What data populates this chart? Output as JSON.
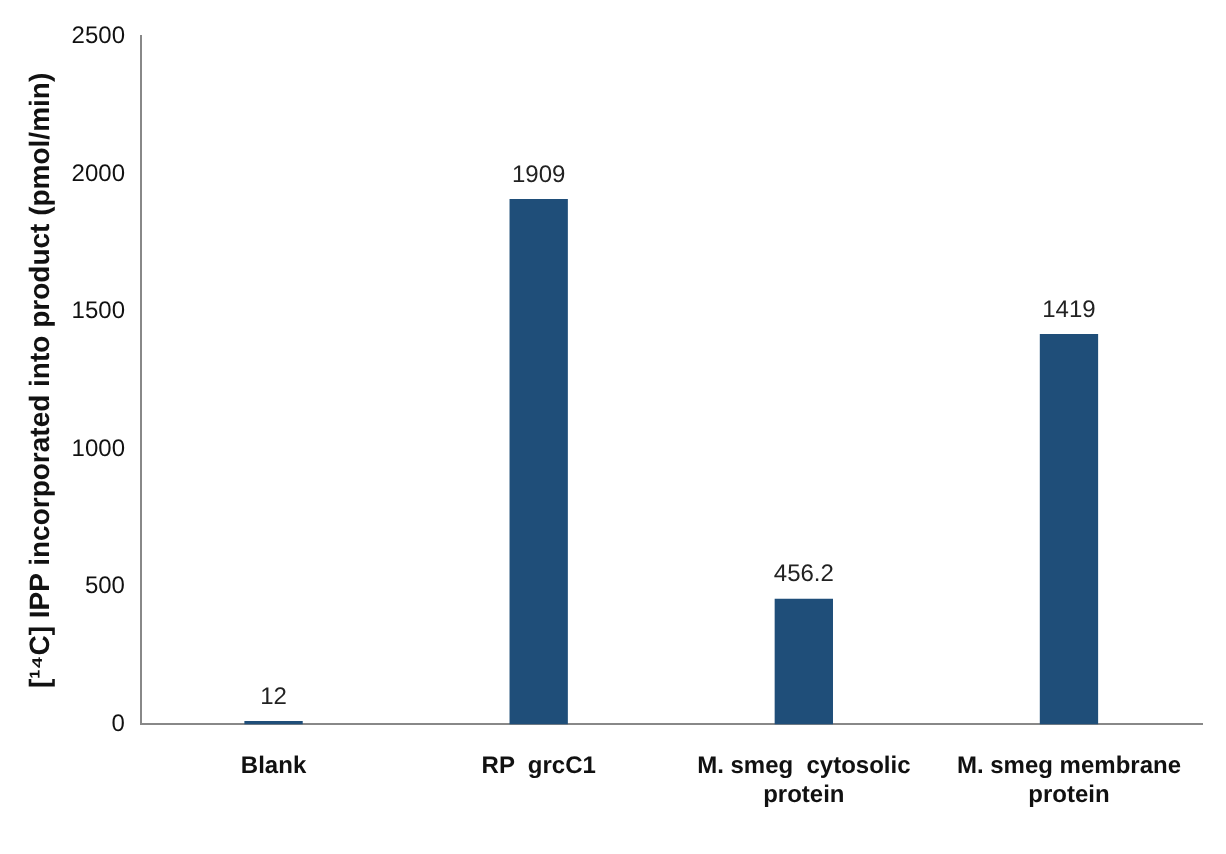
{
  "chart_data": {
    "type": "bar",
    "ylabel": "[¹⁴C] IPP incorporated into product (pmol/min)",
    "categories": [
      "Blank",
      "RP  grcC1",
      "M. smeg  cytosolic protein",
      "M. smeg membrane protein"
    ],
    "values": [
      12,
      1909,
      456.2,
      1419
    ],
    "color": "#1f4e79",
    "ylim": [
      0,
      2500
    ],
    "yticks": [
      0,
      500,
      1000,
      1500,
      2000,
      2500
    ],
    "grid": false,
    "data_labels": true
  }
}
